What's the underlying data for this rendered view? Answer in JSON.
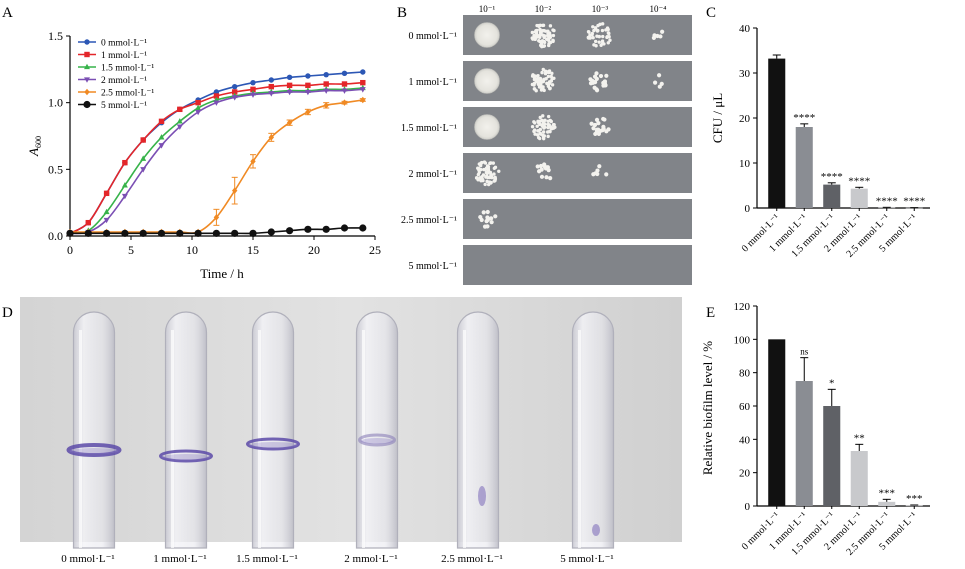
{
  "panel_labels": {
    "A": "A",
    "B": "B",
    "C": "C",
    "D": "D",
    "E": "E"
  },
  "concentrations": [
    "0 mmol·L⁻¹",
    "1 mmol·L⁻¹",
    "1.5 mmol·L⁻¹",
    "2 mmol·L⁻¹",
    "2.5 mmol·L⁻¹",
    "5 mmol·L⁻¹"
  ],
  "colors": {
    "0": "#2c57b5",
    "1": "#e4262a",
    "1.5": "#37b34a",
    "2": "#7b4fb4",
    "2.5": "#f08a24",
    "5": "#111111"
  },
  "panelB": {
    "dilutions": [
      "10⁻¹",
      "10⁻²",
      "10⁻³",
      "10⁻⁴"
    ],
    "row_labels": [
      "0 mmol·L⁻¹",
      "1 mmol·L⁻¹",
      "1.5 mmol·L⁻¹",
      "2 mmol·L⁻¹",
      "2.5 mmol·L⁻¹",
      "5 mmol·L⁻¹"
    ]
  },
  "panelD": {
    "tube_labels": [
      "0 mmol·L⁻¹",
      "1 mmol·L⁻¹",
      "1.5 mmol·L⁻¹",
      "2 mmol·L⁻¹",
      "2.5 mmol·L⁻¹",
      "5 mmol·L⁻¹"
    ]
  },
  "chart_data": [
    {
      "id": "A",
      "type": "line",
      "xlabel": "Time / h",
      "ylabel": "A600",
      "ylabel_main": "A",
      "ylabel_sub": "600",
      "xlim": [
        0,
        25
      ],
      "ylim": [
        0,
        1.5
      ],
      "xticks": [
        "0",
        "5",
        "10",
        "15",
        "20",
        "25"
      ],
      "yticks": [
        "0.0",
        "0.5",
        "1.0",
        "1.5"
      ],
      "legend_position": "top-left",
      "x": [
        0,
        1.5,
        3,
        4.5,
        6,
        7.5,
        9,
        10.5,
        12,
        13.5,
        15,
        16.5,
        18,
        19.5,
        21,
        22.5,
        24
      ],
      "series": [
        {
          "name": "0 mmol·L⁻¹",
          "color": "#2c57b5",
          "marker": "circle",
          "values": [
            0.02,
            0.1,
            0.32,
            0.55,
            0.72,
            0.85,
            0.95,
            1.02,
            1.08,
            1.12,
            1.15,
            1.17,
            1.19,
            1.2,
            1.21,
            1.22,
            1.23
          ]
        },
        {
          "name": "1 mmol·L⁻¹",
          "color": "#e4262a",
          "marker": "square",
          "values": [
            0.02,
            0.1,
            0.32,
            0.55,
            0.72,
            0.86,
            0.95,
            1.0,
            1.05,
            1.08,
            1.1,
            1.12,
            1.13,
            1.13,
            1.14,
            1.14,
            1.15
          ]
        },
        {
          "name": "1.5 mmol·L⁻¹",
          "color": "#37b34a",
          "marker": "triangle-up",
          "values": [
            0.02,
            0.04,
            0.18,
            0.38,
            0.58,
            0.74,
            0.86,
            0.96,
            1.02,
            1.05,
            1.07,
            1.08,
            1.09,
            1.09,
            1.1,
            1.1,
            1.11
          ]
        },
        {
          "name": "2 mmol·L⁻¹",
          "color": "#7b4fb4",
          "marker": "triangle-down",
          "values": [
            0.02,
            0.03,
            0.12,
            0.3,
            0.5,
            0.68,
            0.82,
            0.93,
            1.0,
            1.04,
            1.06,
            1.07,
            1.08,
            1.08,
            1.09,
            1.09,
            1.1
          ]
        },
        {
          "name": "2.5 mmol·L⁻¹",
          "color": "#f08a24",
          "marker": "diamond",
          "values": [
            0.03,
            0.03,
            0.03,
            0.03,
            0.03,
            0.03,
            0.03,
            0.03,
            0.14,
            0.34,
            0.56,
            0.74,
            0.85,
            0.93,
            0.98,
            1.0,
            1.02
          ],
          "errors": [
            0,
            0,
            0,
            0,
            0,
            0,
            0,
            0,
            0.06,
            0.1,
            0.05,
            0.03,
            0.02,
            0.02,
            0.02,
            0.01,
            0.01
          ]
        },
        {
          "name": "5 mmol·L⁻¹",
          "color": "#111111",
          "marker": "circle",
          "values": [
            0.02,
            0.02,
            0.02,
            0.02,
            0.02,
            0.02,
            0.02,
            0.02,
            0.02,
            0.02,
            0.02,
            0.03,
            0.04,
            0.05,
            0.05,
            0.06,
            0.06
          ]
        }
      ]
    },
    {
      "id": "C",
      "type": "bar",
      "ylabel": "CFU / μL",
      "ylim": [
        0,
        40
      ],
      "yticks": [
        "0",
        "10",
        "20",
        "30",
        "40"
      ],
      "categories": [
        "0 mmol·L⁻¹",
        "1 mmol·L⁻¹",
        "1.5 mmol·L⁻¹",
        "2 mmol·L⁻¹",
        "2.5 mmol·L⁻¹",
        "5 mmol·L⁻¹"
      ],
      "values": [
        33.2,
        18.0,
        5.2,
        4.3,
        0.1,
        0.05
      ],
      "errors": [
        0.8,
        0.7,
        0.4,
        0.3,
        0.05,
        0.02
      ],
      "bar_colors": [
        "#111111",
        "#8a8d93",
        "#5f6166",
        "#c8c9cc",
        "#c8c9cc",
        "#c8c9cc"
      ],
      "significance": [
        "",
        "****",
        "****",
        "****",
        "****",
        "****"
      ]
    },
    {
      "id": "E",
      "type": "bar",
      "ylabel": "Relative biofilm level / %",
      "ylim": [
        0,
        120
      ],
      "yticks": [
        "0",
        "20",
        "40",
        "60",
        "80",
        "100",
        "120"
      ],
      "categories": [
        "0 mmol·L⁻¹",
        "1 mmol·L⁻¹",
        "1.5 mmol·L⁻¹",
        "2 mmol·L⁻¹",
        "2.5 mmol·L⁻¹",
        "5 mmol·L⁻¹"
      ],
      "values": [
        100,
        75,
        60,
        33,
        2.5,
        0.3
      ],
      "errors": [
        0,
        14,
        10,
        4,
        1.5,
        0.3
      ],
      "bar_colors": [
        "#111111",
        "#8a8d93",
        "#5f6166",
        "#c8c9cc",
        "#c8c9cc",
        "#c8c9cc"
      ],
      "significance": [
        "",
        "ns",
        "*",
        "**",
        "***",
        "***"
      ]
    }
  ]
}
